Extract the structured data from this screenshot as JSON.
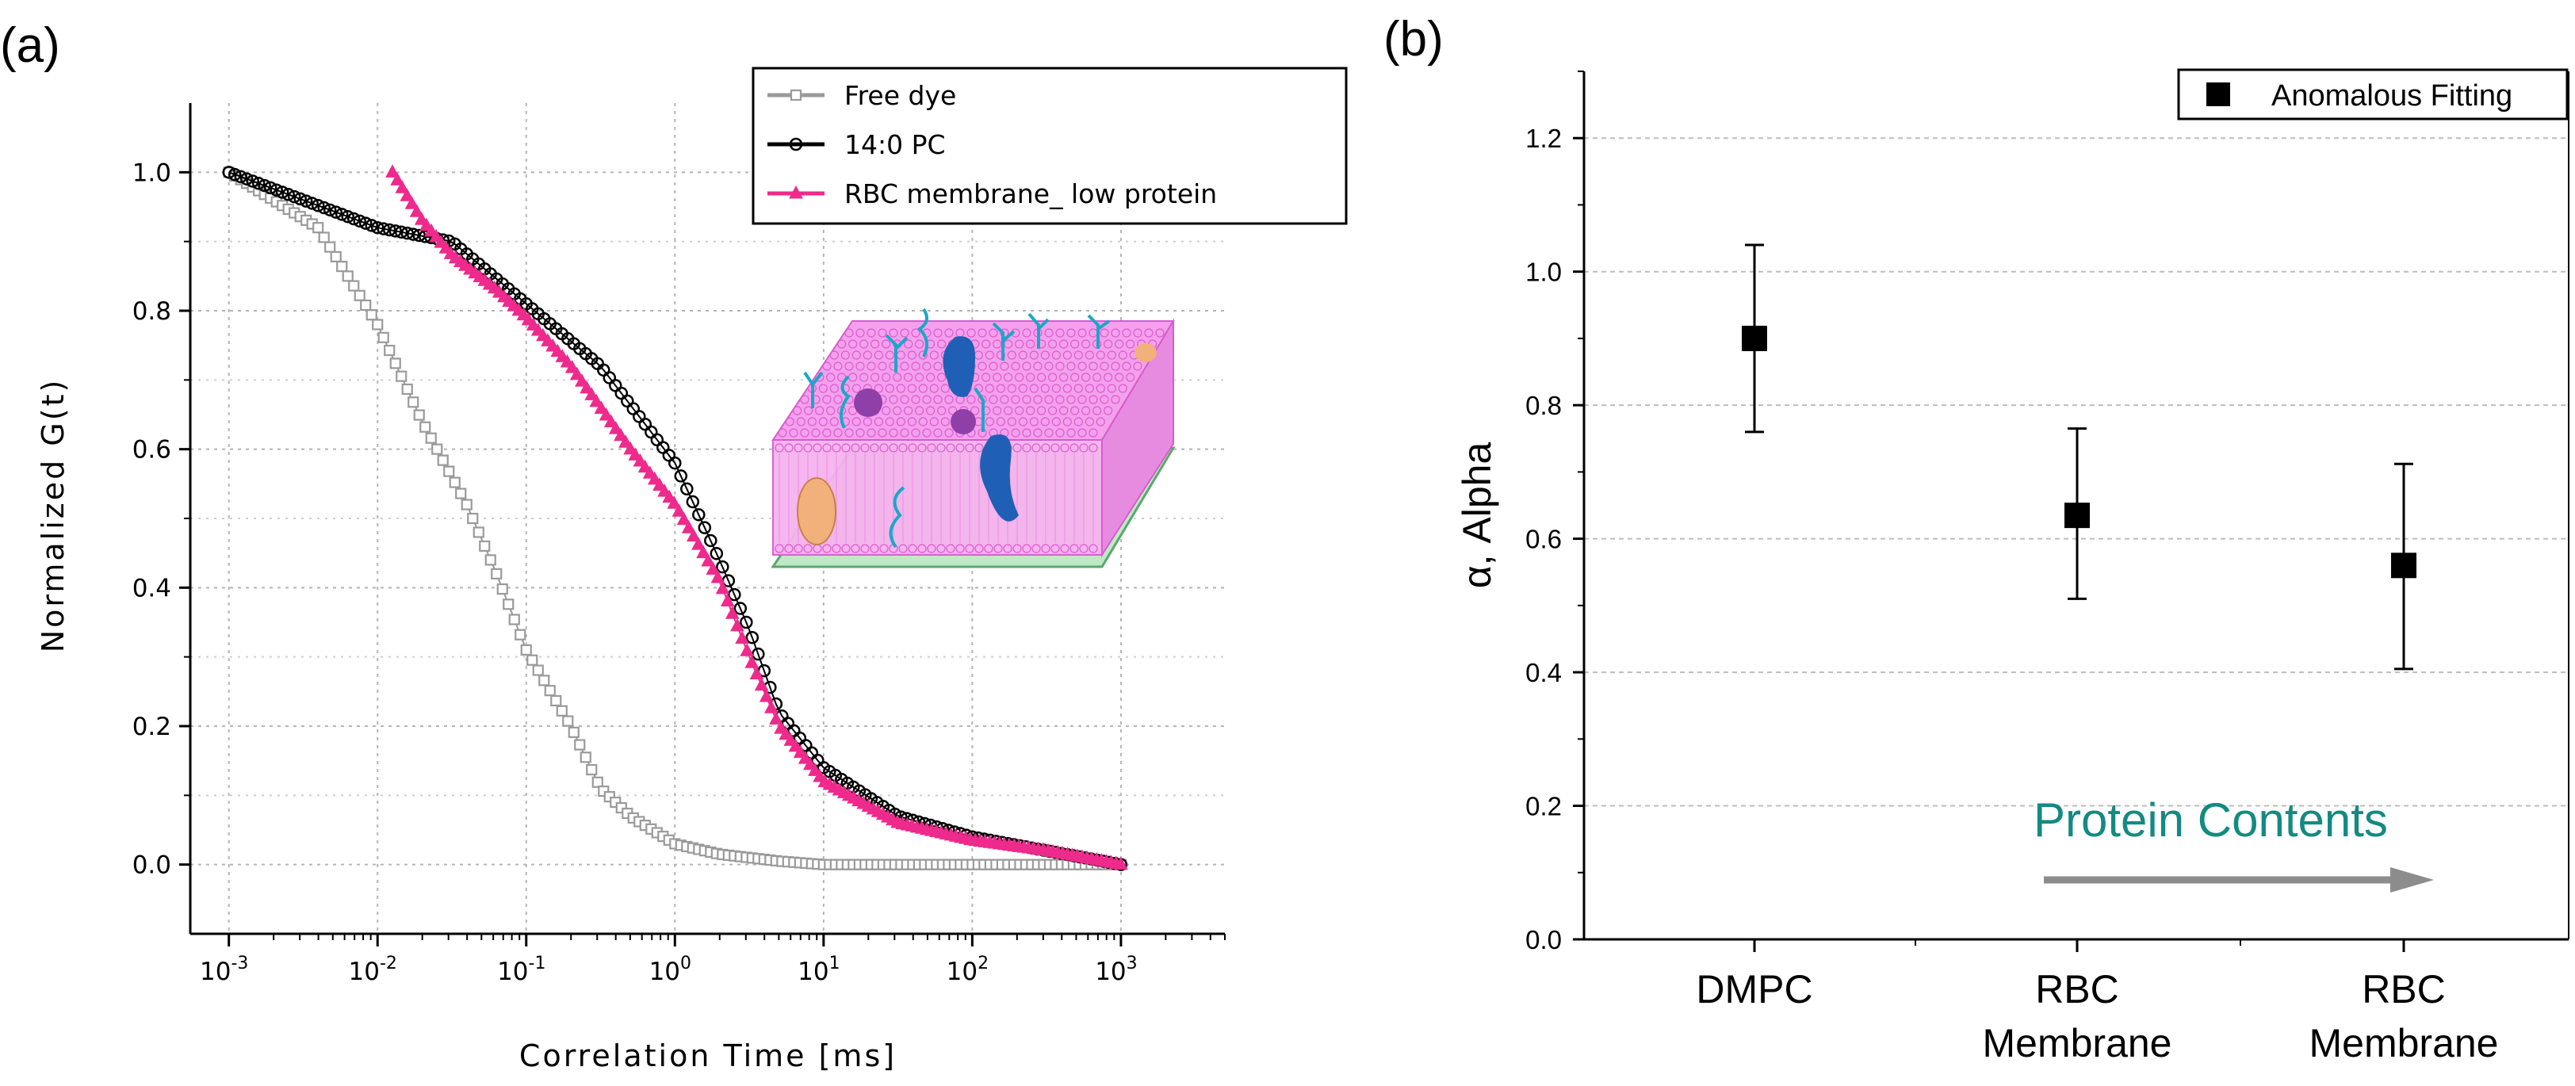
{
  "panels": {
    "a": "(a)",
    "b": "(b)"
  },
  "chart_data": [
    {
      "type": "scatter",
      "title": "",
      "xlabel": "Correlation Time [ms]",
      "ylabel": "Normalized G(t)",
      "xscale": "log",
      "xlim": [
        0.00055,
        5000
      ],
      "ylim": [
        -0.1,
        1.1
      ],
      "x_ticks": [
        {
          "base": "10",
          "exp": "-3"
        },
        {
          "base": "10",
          "exp": "-2"
        },
        {
          "base": "10",
          "exp": "-1"
        },
        {
          "base": "10",
          "exp": "0"
        },
        {
          "base": "10",
          "exp": "1"
        },
        {
          "base": "10",
          "exp": "2"
        },
        {
          "base": "10",
          "exp": "3"
        }
      ],
      "y_ticks": [
        "0.0",
        "0.2",
        "0.4",
        "0.6",
        "0.8",
        "1.0"
      ],
      "grid": true,
      "legend_position": "top-right",
      "series": [
        {
          "name": "Free dye",
          "color": "#9a9a9a",
          "marker": "square",
          "x_log10": [
            -3,
            -2.7,
            -2.4,
            -2,
            -1.7,
            -1.4,
            -1.2,
            -1,
            -0.7,
            -0.5,
            -0.3,
            0,
            0.3,
            0.7,
            1,
            2,
            3
          ],
          "y": [
            1.0,
            0.96,
            0.92,
            0.78,
            0.64,
            0.52,
            0.42,
            0.31,
            0.2,
            0.11,
            0.07,
            0.03,
            0.015,
            0.005,
            0.0,
            0.0,
            0.0
          ]
        },
        {
          "name": "14:0 PC",
          "color": "#000000",
          "marker": "circle",
          "x_log10": [
            -3,
            -2.5,
            -2,
            -1.5,
            -1,
            -0.5,
            0,
            0.3,
            0.5,
            0.7,
            1,
            1.5,
            2,
            2.5,
            3
          ],
          "y": [
            1.0,
            0.96,
            0.92,
            0.9,
            0.81,
            0.72,
            0.58,
            0.44,
            0.34,
            0.22,
            0.14,
            0.07,
            0.04,
            0.02,
            0.0
          ]
        },
        {
          "name": "RBC membrane_ low protein",
          "color": "#ee2a8c",
          "marker": "triangle",
          "x_log10": [
            -1.9,
            -1.7,
            -1.5,
            -1.2,
            -1,
            -0.7,
            -0.5,
            -0.3,
            0,
            0.3,
            0.5,
            0.7,
            1,
            1.5,
            2,
            2.5,
            3
          ],
          "y": [
            1.0,
            0.93,
            0.88,
            0.83,
            0.79,
            0.72,
            0.66,
            0.6,
            0.52,
            0.41,
            0.3,
            0.2,
            0.12,
            0.06,
            0.035,
            0.02,
            0.0
          ]
        }
      ]
    },
    {
      "type": "scatter",
      "title": "",
      "xlabel": "",
      "ylabel": "α, Alpha",
      "ylim": [
        0.0,
        1.3
      ],
      "y_ticks": [
        "0.0",
        "0.2",
        "0.4",
        "0.6",
        "0.8",
        "1.0",
        "1.2"
      ],
      "grid": true,
      "legend_position": "top-right",
      "categories": [
        {
          "line1": "DMPC",
          "line2": ""
        },
        {
          "line1": "RBC",
          "line2": "Membrane"
        },
        {
          "line1": "RBC",
          "line2": "Membrane"
        }
      ],
      "series": [
        {
          "name": "Anomalous Fitting",
          "color": "#000000",
          "marker": "square",
          "values": [
            0.9,
            0.635,
            0.56
          ],
          "err_low": [
            0.76,
            0.51,
            0.405
          ],
          "err_high": [
            1.04,
            0.765,
            0.712
          ]
        }
      ],
      "annotation": "Protein Contents",
      "annotation_color": "#138a82"
    }
  ]
}
